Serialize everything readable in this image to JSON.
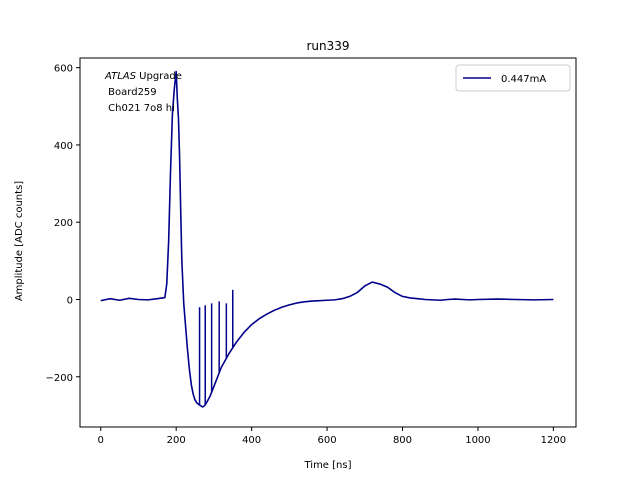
{
  "chart_data": {
    "type": "line",
    "title": "run339",
    "xlabel": "Time [ns]",
    "ylabel": "Amplitude [ADC counts]",
    "xlim": [
      -55,
      1260
    ],
    "ylim": [
      -330,
      625
    ],
    "xticks": [
      0,
      200,
      400,
      600,
      800,
      1000,
      1200
    ],
    "xtick_labels": [
      "0",
      "200",
      "400",
      "600",
      "800",
      "1000",
      "1200"
    ],
    "yticks": [
      -200,
      0,
      200,
      400,
      600
    ],
    "ytick_labels": [
      "−200",
      "0",
      "200",
      "400",
      "600"
    ],
    "grid": false,
    "legend_position": "top-right",
    "annotation": {
      "italic": "ATLAS",
      "rest": " Upgrade",
      "line2": " Board259",
      "line3": " Ch021 7o8 hi"
    },
    "series": [
      {
        "name": "0.447mA",
        "color": "#00008b",
        "x": [
          0,
          25,
          50,
          75,
          100,
          125,
          150,
          170,
          175,
          180,
          185,
          190,
          195,
          200,
          203,
          206,
          209,
          212,
          215,
          220,
          225,
          230,
          235,
          240,
          245,
          250,
          255,
          260,
          265,
          270,
          275,
          280,
          290,
          300,
          310,
          320,
          340,
          360,
          380,
          400,
          420,
          440,
          460,
          480,
          500,
          520,
          540,
          560,
          580,
          600,
          620,
          640,
          660,
          680,
          700,
          720,
          740,
          760,
          780,
          800,
          820,
          840,
          860,
          880,
          900,
          920,
          940,
          960,
          980,
          1000,
          1050,
          1100,
          1150,
          1200
        ],
        "y": [
          -3,
          2,
          -2,
          3,
          0,
          -1,
          2,
          5,
          40,
          150,
          330,
          480,
          545,
          590,
          520,
          470,
          370,
          230,
          100,
          -10,
          -70,
          -130,
          -180,
          -220,
          -245,
          -260,
          -268,
          -272,
          -275,
          -278,
          -275,
          -268,
          -250,
          -225,
          -200,
          -175,
          -140,
          -110,
          -85,
          -65,
          -50,
          -38,
          -28,
          -20,
          -14,
          -9,
          -6,
          -4,
          -3,
          -2,
          -1,
          2,
          8,
          18,
          35,
          45,
          40,
          32,
          18,
          8,
          4,
          2,
          0,
          -1,
          -2,
          0,
          1,
          0,
          -1,
          0,
          1,
          0,
          -1,
          0
        ]
      }
    ],
    "spikes": [
      {
        "x": 262,
        "y": -20
      },
      {
        "x": 277,
        "y": -15
      },
      {
        "x": 294,
        "y": -10
      },
      {
        "x": 314,
        "y": -5
      },
      {
        "x": 333,
        "y": -10
      },
      {
        "x": 350,
        "y": 25
      }
    ]
  }
}
